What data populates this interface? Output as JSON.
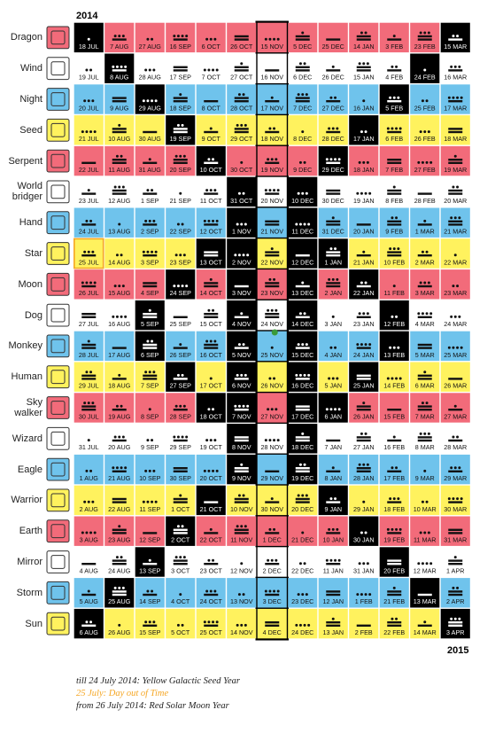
{
  "year_start": "2014",
  "year_end": "2015",
  "palette": {
    "red": "#f26b7a",
    "white": "#ffffff",
    "blue": "#6fc3ec",
    "yellow": "#fff25e",
    "portal": "#000000"
  },
  "seals": [
    {
      "name": "Dragon",
      "color": "red"
    },
    {
      "name": "Wind",
      "color": "white"
    },
    {
      "name": "Night",
      "color": "blue"
    },
    {
      "name": "Seed",
      "color": "yellow"
    },
    {
      "name": "Serpent",
      "color": "red"
    },
    {
      "name": "World bridger",
      "color": "white"
    },
    {
      "name": "Hand",
      "color": "blue"
    },
    {
      "name": "Star",
      "color": "yellow"
    },
    {
      "name": "Moon",
      "color": "red"
    },
    {
      "name": "Dog",
      "color": "white"
    },
    {
      "name": "Monkey",
      "color": "blue"
    },
    {
      "name": "Human",
      "color": "yellow"
    },
    {
      "name": "Sky walker",
      "color": "red"
    },
    {
      "name": "Wizard",
      "color": "white"
    },
    {
      "name": "Eagle",
      "color": "blue"
    },
    {
      "name": "Warrior",
      "color": "yellow"
    },
    {
      "name": "Earth",
      "color": "red"
    },
    {
      "name": "Mirror",
      "color": "white"
    },
    {
      "name": "Storm",
      "color": "blue"
    },
    {
      "name": "Sun",
      "color": "yellow"
    }
  ],
  "dates": [
    [
      "18 JUL",
      "19 JUL",
      "20 JUL",
      "21 JUL",
      "22 JUL",
      "23 JUL",
      "24 JUL",
      "25 JUL",
      "26 JUL",
      "27 JUL",
      "28 JUL",
      "29 JUL",
      "30 JUL",
      "31 JUL",
      "1 AUG",
      "2 AUG",
      "3 AUG",
      "4 AUG",
      "5 AUG",
      "6 AUG"
    ],
    [
      "7 AUG",
      "8 AUG",
      "9 AUG",
      "10 AUG",
      "11 AUG",
      "12 AUG",
      "13 AUG",
      "14 AUG",
      "15 AUG",
      "16 AUG",
      "17 AUG",
      "18 AUG",
      "19 AUG",
      "20 AUG",
      "21 AUG",
      "22 AUG",
      "23 AUG",
      "24 AUG",
      "25 AUG",
      "26 AUG"
    ],
    [
      "27 AUG",
      "28 AUG",
      "29 AUG",
      "30 AUG",
      "31 AUG",
      "1 SEP",
      "2 SEP",
      "3 SEP",
      "4 SEP",
      "5 SEP",
      "6 SEP",
      "7 SEP",
      "8 SEP",
      "9 SEP",
      "10 SEP",
      "11 SEP",
      "12 SEP",
      "13 SEP",
      "14 SEP",
      "15 SEP"
    ],
    [
      "16 SEP",
      "17 SEP",
      "18 SEP",
      "19 SEP",
      "20 SEP",
      "21 SEP",
      "22 SEP",
      "23 SEP",
      "24 SEP",
      "25 SEP",
      "26 SEP",
      "27 SEP",
      "28 SEP",
      "29 SEP",
      "30 SEP",
      "1 OCT",
      "2 OCT",
      "3 OCT",
      "4 OCT",
      "5 OCT"
    ],
    [
      "6 OCT",
      "7 OCT",
      "8 OCT",
      "9 OCT",
      "10 OCT",
      "11 OCT",
      "12 OCT",
      "13 OCT",
      "14 OCT",
      "15 OCT",
      "16 OCT",
      "17 OCT",
      "18 OCT",
      "19 OCT",
      "20 OCT",
      "21 OCT",
      "22 OCT",
      "23 OCT",
      "24 OCT",
      "25 OCT"
    ],
    [
      "26 OCT",
      "27 OCT",
      "28 OCT",
      "29 OCT",
      "30 OCT",
      "31 OCT",
      "1 NOV",
      "2 NOV",
      "3 NOV",
      "4 NOV",
      "5 NOV",
      "6 NOV",
      "7 NOV",
      "8 NOV",
      "9 NOV",
      "10 NOV",
      "11 NOV",
      "12 NOV",
      "13 NOV",
      "14 NOV"
    ],
    [
      "15 NOV",
      "16 NOV",
      "17 NOV",
      "18 NOV",
      "19 NOV",
      "20 NOV",
      "21 NOV",
      "22 NOV",
      "23 NOV",
      "24 NOV",
      "25 NOV",
      "26 NOV",
      "27 NOV",
      "28 NOV",
      "29 NOV",
      "30 NOV",
      "1 DEC",
      "2 DEC",
      "3 DEC",
      "4 DEC"
    ],
    [
      "5 DEC",
      "6 DEC",
      "7 DEC",
      "8 DEC",
      "9 DEC",
      "10 DEC",
      "11 DEC",
      "12 DEC",
      "13 DEC",
      "14 DEC",
      "15 DEC",
      "16 DEC",
      "17 DEC",
      "18 DEC",
      "19 DEC",
      "20 DEC",
      "21 DEC",
      "22 DEC",
      "23 DEC",
      "24 DEC"
    ],
    [
      "25 DEC",
      "26 DEC",
      "27 DEC",
      "28 DEC",
      "29 DEC",
      "30 DEC",
      "31 DEC",
      "1 JAN",
      "2 JAN",
      "3 JAN",
      "4 JAN",
      "5 JAN",
      "6 JAN",
      "7 JAN",
      "8 JAN",
      "9 JAN",
      "10 JAN",
      "11 JAN",
      "12 JAN",
      "13 JAN"
    ],
    [
      "14 JAN",
      "15 JAN",
      "16 JAN",
      "17 JAN",
      "18 JAN",
      "19 JAN",
      "20 JAN",
      "21 JAN",
      "22 JAN",
      "23 JAN",
      "24 JAN",
      "25 JAN",
      "26 JAN",
      "27 JAN",
      "28 JAN",
      "29 JAN",
      "30 JAN",
      "31 JAN",
      "1 FEB",
      "2 FEB"
    ],
    [
      "3 FEB",
      "4 FEB",
      "5 FEB",
      "6 FEB",
      "7 FEB",
      "8 FEB",
      "9 FEB",
      "10 FEB",
      "11 FEB",
      "12 FEB",
      "13 FEB",
      "14 FEB",
      "15 FEB",
      "16 FEB",
      "17 FEB",
      "18 FEB",
      "19 FEB",
      "20 FEB",
      "21 FEB",
      "22 FEB"
    ],
    [
      "23 FEB",
      "24 FEB",
      "25 FEB",
      "26 FEB",
      "27 FEB",
      "28 FEB",
      "1 MAR",
      "2 MAR",
      "3 MAR",
      "4 MAR",
      "5 MAR",
      "6 MAR",
      "7 MAR",
      "8 MAR",
      "9 MAR",
      "10 MAR",
      "11 MAR",
      "12 MAR",
      "13 MAR",
      "14 MAR"
    ],
    [
      "15 MAR",
      "16 MAR",
      "17 MAR",
      "18 MAR",
      "19 MAR",
      "20 MAR",
      "21 MAR",
      "22 MAR",
      "23 MAR",
      "24 MAR",
      "25 MAR",
      "26 MAR",
      "27 MAR",
      "28 MAR",
      "29 MAR",
      "30 MAR",
      "31 MAR",
      "1 APR",
      "2 APR",
      "3 APR"
    ]
  ],
  "tones": [
    [
      1,
      2,
      3,
      4,
      5,
      6,
      7,
      8,
      9,
      10,
      11,
      12,
      13,
      1,
      2,
      3,
      4,
      5,
      6,
      7
    ],
    [
      8,
      9,
      10,
      11,
      12,
      13,
      1,
      2,
      3,
      4,
      5,
      6,
      7,
      8,
      9,
      10,
      11,
      12,
      13,
      1
    ],
    [
      2,
      3,
      4,
      5,
      6,
      7,
      8,
      9,
      10,
      11,
      12,
      13,
      1,
      2,
      3,
      4,
      5,
      6,
      7,
      8
    ],
    [
      9,
      10,
      11,
      12,
      13,
      1,
      2,
      3,
      4,
      5,
      6,
      7,
      8,
      9,
      10,
      11,
      12,
      13,
      1,
      2
    ],
    [
      3,
      4,
      5,
      6,
      7,
      8,
      9,
      10,
      11,
      12,
      13,
      1,
      2,
      3,
      4,
      5,
      6,
      7,
      8,
      9
    ],
    [
      10,
      11,
      12,
      13,
      1,
      2,
      3,
      4,
      5,
      6,
      7,
      8,
      9,
      10,
      11,
      12,
      13,
      1,
      2,
      3
    ],
    [
      4,
      5,
      6,
      7,
      8,
      9,
      10,
      11,
      12,
      13,
      1,
      2,
      3,
      4,
      5,
      6,
      7,
      8,
      9,
      10
    ],
    [
      11,
      12,
      13,
      1,
      2,
      3,
      4,
      5,
      6,
      7,
      8,
      9,
      10,
      11,
      12,
      13,
      1,
      2,
      3,
      4
    ],
    [
      5,
      6,
      7,
      8,
      9,
      10,
      11,
      12,
      13,
      1,
      2,
      3,
      4,
      5,
      6,
      7,
      8,
      9,
      10,
      11
    ],
    [
      12,
      13,
      1,
      2,
      3,
      4,
      5,
      6,
      7,
      8,
      9,
      10,
      11,
      12,
      13,
      1,
      2,
      3,
      4,
      5
    ],
    [
      6,
      7,
      8,
      9,
      10,
      11,
      12,
      13,
      1,
      2,
      3,
      4,
      5,
      6,
      7,
      8,
      9,
      10,
      11,
      12
    ],
    [
      13,
      1,
      2,
      3,
      4,
      5,
      6,
      7,
      8,
      9,
      10,
      11,
      12,
      13,
      1,
      2,
      3,
      4,
      5,
      6
    ],
    [
      7,
      8,
      9,
      10,
      11,
      12,
      13,
      1,
      2,
      3,
      4,
      5,
      6,
      7,
      8,
      9,
      10,
      11,
      12,
      13
    ]
  ],
  "portal_kins": [
    1,
    20,
    22,
    39,
    43,
    50,
    51,
    58,
    64,
    69,
    72,
    77,
    85,
    88,
    93,
    96,
    106,
    107,
    108,
    109,
    110,
    111,
    112,
    113,
    114,
    115,
    146,
    147,
    148,
    149,
    150,
    151,
    152,
    153,
    154,
    155,
    165,
    168,
    173,
    176,
    184,
    189,
    192,
    197,
    203,
    210,
    211,
    218,
    222,
    239,
    241,
    260
  ],
  "footer": [
    {
      "text": "till 24 July 2014: Yellow Galactic Seed Year",
      "color": "#222222"
    },
    {
      "text": "25 July: Day out of Time",
      "color": "#f5a623"
    },
    {
      "text": "from 26 July 2014: Red Solar Moon Year",
      "color": "#222222"
    }
  ]
}
